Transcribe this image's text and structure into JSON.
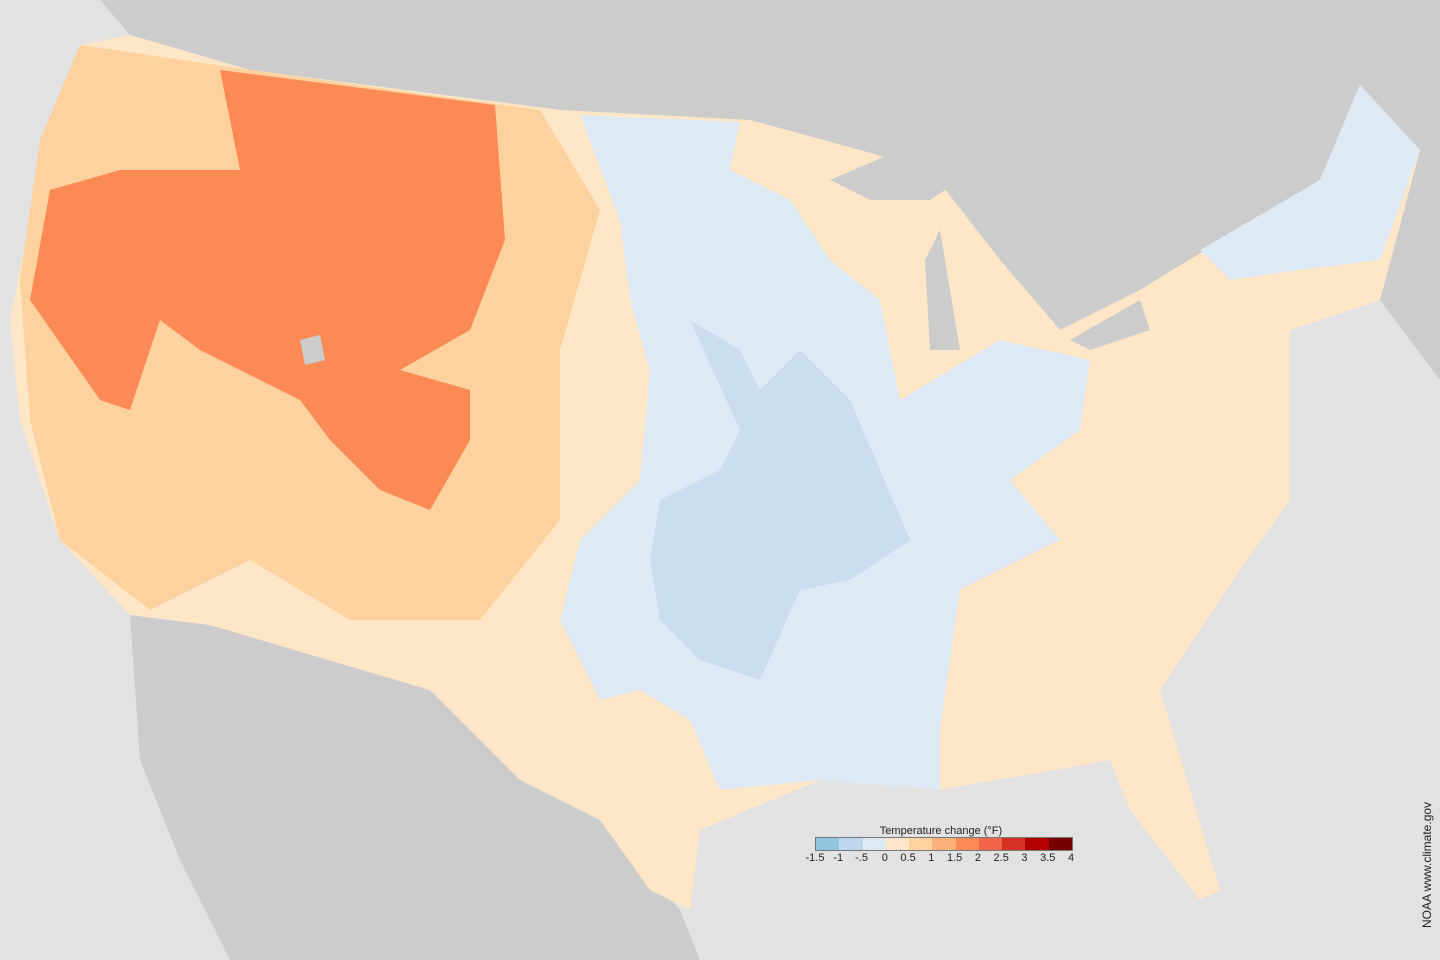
{
  "legend": {
    "title": "Temperature change (°F)",
    "colors": [
      "#92c5de",
      "#bdd7ee",
      "#dde9f5",
      "#fee6c6",
      "#fdd29e",
      "#fdb07c",
      "#fc8a55",
      "#f2644a",
      "#d83226",
      "#b20000",
      "#780000"
    ],
    "ticks": [
      "-1.5",
      "-1",
      "-.5",
      "0",
      "0.5",
      "1",
      "1.5",
      "2",
      "2.5",
      "3",
      "3.5",
      "4"
    ]
  },
  "credit": "NOAA www.climate.gov",
  "map_colors": {
    "background": "#e2e2e2",
    "other_land": "#cccccc",
    "water": "#e2e2e2"
  }
}
